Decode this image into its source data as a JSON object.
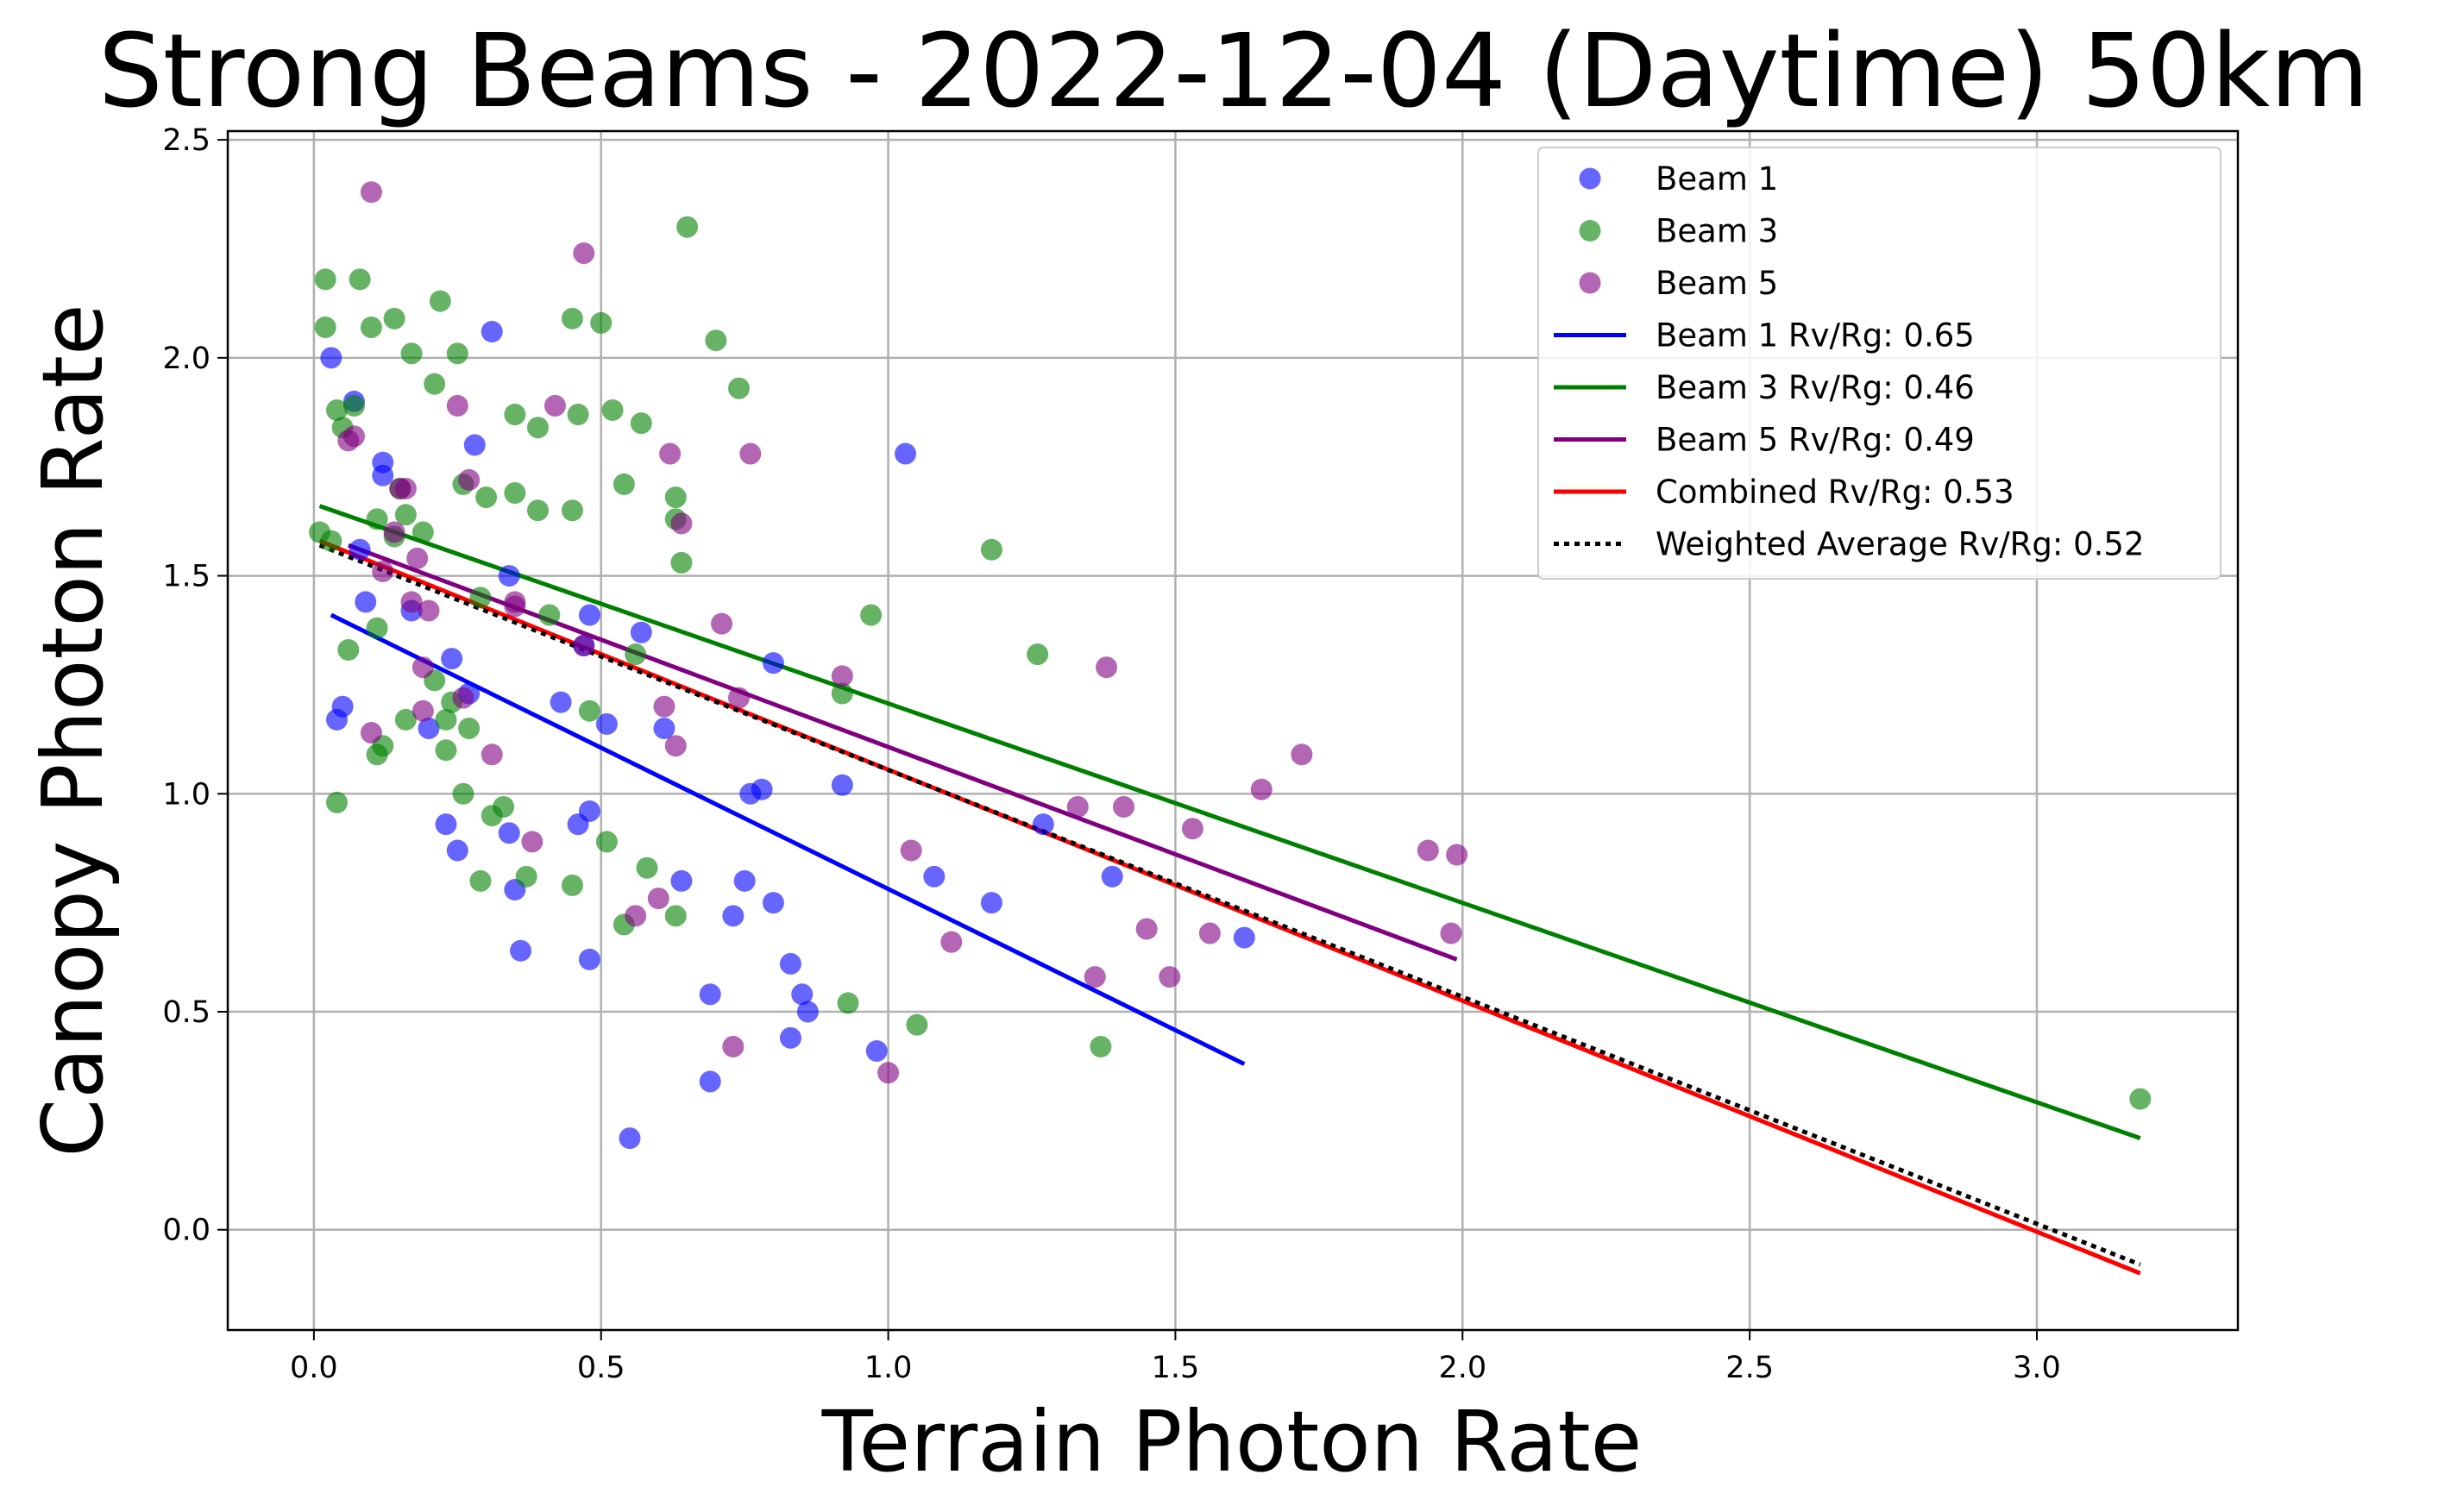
{
  "chart_data": {
    "type": "scatter",
    "title": "Strong Beams - 2022-12-04 (Daytime) 50km",
    "xlabel": "Terrain Photon Rate",
    "ylabel": "Canopy Photon Rate",
    "xlim": [
      -0.15,
      3.35
    ],
    "ylim": [
      -0.23,
      2.52
    ],
    "xticks": [
      0.0,
      0.5,
      1.0,
      1.5,
      2.0,
      2.5,
      3.0
    ],
    "xtick_labels": [
      "0.0",
      "0.5",
      "1.0",
      "1.5",
      "2.0",
      "2.5",
      "3.0"
    ],
    "yticks": [
      0.0,
      0.5,
      1.0,
      1.5,
      2.0,
      2.5
    ],
    "ytick_labels": [
      "0.0",
      "0.5",
      "1.0",
      "1.5",
      "2.0",
      "2.5"
    ],
    "grid": true,
    "legend_position": "top-right",
    "series": [
      {
        "name": "Beam 1",
        "kind": "scatter",
        "color": "#0000ff",
        "points": [
          [
            0.03,
            2.0
          ],
          [
            0.07,
            1.9
          ],
          [
            0.08,
            1.56
          ],
          [
            0.09,
            1.44
          ],
          [
            0.12,
            1.73
          ],
          [
            0.12,
            1.76
          ],
          [
            0.05,
            1.2
          ],
          [
            0.04,
            1.17
          ],
          [
            0.17,
            1.42
          ],
          [
            0.2,
            1.15
          ],
          [
            0.24,
            1.31
          ],
          [
            0.23,
            0.93
          ],
          [
            0.25,
            0.87
          ],
          [
            0.27,
            1.23
          ],
          [
            0.28,
            1.8
          ],
          [
            0.31,
            2.06
          ],
          [
            0.34,
            1.5
          ],
          [
            0.34,
            0.91
          ],
          [
            0.35,
            0.78
          ],
          [
            0.36,
            0.64
          ],
          [
            0.43,
            1.21
          ],
          [
            0.46,
            0.93
          ],
          [
            0.47,
            1.34
          ],
          [
            0.48,
            1.41
          ],
          [
            0.48,
            0.96
          ],
          [
            0.48,
            0.62
          ],
          [
            0.51,
            1.16
          ],
          [
            0.55,
            0.21
          ],
          [
            0.57,
            1.37
          ],
          [
            0.61,
            1.15
          ],
          [
            0.64,
            0.8
          ],
          [
            0.69,
            0.54
          ],
          [
            0.69,
            0.34
          ],
          [
            0.73,
            0.72
          ],
          [
            0.75,
            0.8
          ],
          [
            0.76,
            1.0
          ],
          [
            0.78,
            1.01
          ],
          [
            0.8,
            1.3
          ],
          [
            0.8,
            0.75
          ],
          [
            0.83,
            0.61
          ],
          [
            0.83,
            0.44
          ],
          [
            0.85,
            0.54
          ],
          [
            0.86,
            0.5
          ],
          [
            0.92,
            1.02
          ],
          [
            0.98,
            0.41
          ],
          [
            1.03,
            1.78
          ],
          [
            1.08,
            0.81
          ],
          [
            1.18,
            0.75
          ],
          [
            1.27,
            0.93
          ],
          [
            1.39,
            0.81
          ],
          [
            1.62,
            0.67
          ]
        ]
      },
      {
        "name": "Beam 3",
        "kind": "scatter",
        "color": "#008000",
        "points": [
          [
            0.01,
            1.6
          ],
          [
            0.02,
            2.07
          ],
          [
            0.02,
            2.18
          ],
          [
            0.03,
            1.58
          ],
          [
            0.04,
            0.98
          ],
          [
            0.04,
            1.88
          ],
          [
            0.05,
            1.84
          ],
          [
            0.06,
            1.33
          ],
          [
            0.07,
            1.89
          ],
          [
            0.08,
            2.18
          ],
          [
            0.1,
            2.07
          ],
          [
            0.11,
            1.63
          ],
          [
            0.11,
            1.38
          ],
          [
            0.11,
            1.09
          ],
          [
            0.12,
            1.11
          ],
          [
            0.14,
            2.09
          ],
          [
            0.14,
            1.59
          ],
          [
            0.15,
            1.7
          ],
          [
            0.16,
            1.64
          ],
          [
            0.16,
            1.17
          ],
          [
            0.17,
            2.01
          ],
          [
            0.19,
            1.6
          ],
          [
            0.21,
            1.94
          ],
          [
            0.21,
            1.26
          ],
          [
            0.22,
            2.13
          ],
          [
            0.23,
            1.17
          ],
          [
            0.23,
            1.1
          ],
          [
            0.24,
            1.21
          ],
          [
            0.25,
            2.01
          ],
          [
            0.26,
            1.71
          ],
          [
            0.26,
            1.0
          ],
          [
            0.27,
            1.15
          ],
          [
            0.29,
            1.45
          ],
          [
            0.29,
            0.8
          ],
          [
            0.3,
            1.68
          ],
          [
            0.31,
            0.95
          ],
          [
            0.33,
            0.97
          ],
          [
            0.35,
            1.69
          ],
          [
            0.35,
            1.87
          ],
          [
            0.37,
            0.81
          ],
          [
            0.39,
            1.84
          ],
          [
            0.39,
            1.65
          ],
          [
            0.41,
            1.41
          ],
          [
            0.45,
            2.09
          ],
          [
            0.45,
            1.65
          ],
          [
            0.45,
            0.79
          ],
          [
            0.46,
            1.87
          ],
          [
            0.48,
            1.19
          ],
          [
            0.5,
            2.08
          ],
          [
            0.51,
            0.89
          ],
          [
            0.52,
            1.88
          ],
          [
            0.54,
            1.71
          ],
          [
            0.54,
            0.7
          ],
          [
            0.56,
            1.32
          ],
          [
            0.57,
            1.85
          ],
          [
            0.58,
            0.83
          ],
          [
            0.63,
            1.68
          ],
          [
            0.63,
            1.63
          ],
          [
            0.63,
            0.72
          ],
          [
            0.64,
            1.53
          ],
          [
            0.65,
            2.3
          ],
          [
            0.7,
            2.04
          ],
          [
            0.74,
            1.93
          ],
          [
            0.93,
            0.52
          ],
          [
            0.92,
            1.23
          ],
          [
            0.97,
            1.41
          ],
          [
            1.05,
            0.47
          ],
          [
            1.18,
            1.56
          ],
          [
            1.26,
            1.32
          ],
          [
            1.37,
            0.42
          ],
          [
            3.18,
            0.3
          ]
        ]
      },
      {
        "name": "Beam 5",
        "kind": "scatter",
        "color": "#800080",
        "points": [
          [
            0.06,
            1.81
          ],
          [
            0.07,
            1.82
          ],
          [
            0.1,
            2.38
          ],
          [
            0.1,
            1.14
          ],
          [
            0.12,
            1.51
          ],
          [
            0.14,
            1.6
          ],
          [
            0.15,
            1.7
          ],
          [
            0.16,
            1.7
          ],
          [
            0.17,
            1.44
          ],
          [
            0.18,
            1.54
          ],
          [
            0.19,
            1.29
          ],
          [
            0.19,
            1.19
          ],
          [
            0.2,
            1.42
          ],
          [
            0.25,
            1.89
          ],
          [
            0.26,
            1.22
          ],
          [
            0.27,
            1.72
          ],
          [
            0.31,
            1.09
          ],
          [
            0.35,
            1.44
          ],
          [
            0.35,
            1.43
          ],
          [
            0.38,
            0.89
          ],
          [
            0.42,
            1.89
          ],
          [
            0.47,
            1.34
          ],
          [
            0.47,
            2.24
          ],
          [
            0.56,
            0.72
          ],
          [
            0.6,
            0.76
          ],
          [
            0.61,
            1.2
          ],
          [
            0.62,
            1.78
          ],
          [
            0.63,
            1.11
          ],
          [
            0.64,
            1.62
          ],
          [
            0.71,
            1.39
          ],
          [
            0.74,
            1.22
          ],
          [
            0.73,
            0.42
          ],
          [
            0.76,
            1.78
          ],
          [
            0.92,
            1.27
          ],
          [
            1.0,
            0.36
          ],
          [
            1.04,
            0.87
          ],
          [
            1.11,
            0.66
          ],
          [
            1.33,
            0.97
          ],
          [
            1.36,
            0.58
          ],
          [
            1.38,
            1.29
          ],
          [
            1.41,
            0.97
          ],
          [
            1.45,
            0.69
          ],
          [
            1.49,
            0.58
          ],
          [
            1.53,
            0.92
          ],
          [
            1.56,
            0.68
          ],
          [
            1.65,
            1.01
          ],
          [
            1.72,
            1.09
          ],
          [
            1.94,
            0.87
          ],
          [
            1.99,
            0.86
          ],
          [
            1.98,
            0.68
          ]
        ]
      },
      {
        "name": "Beam 1 Rv/Rg: 0.65",
        "kind": "line",
        "color": "#0000ff",
        "style": "solid",
        "points": [
          [
            0.03,
            1.41
          ],
          [
            1.62,
            0.38
          ]
        ]
      },
      {
        "name": "Beam 3 Rv/Rg: 0.46",
        "kind": "line",
        "color": "#008000",
        "style": "solid",
        "points": [
          [
            0.01,
            1.66
          ],
          [
            3.18,
            0.21
          ]
        ]
      },
      {
        "name": "Beam 5 Rv/Rg: 0.49",
        "kind": "line",
        "color": "#800080",
        "style": "solid",
        "points": [
          [
            0.06,
            1.57
          ],
          [
            1.99,
            0.62
          ]
        ]
      },
      {
        "name": "Combined Rv/Rg: 0.53",
        "kind": "line",
        "color": "#ff0000",
        "style": "solid",
        "points": [
          [
            0.01,
            1.58
          ],
          [
            3.18,
            -0.1
          ]
        ]
      },
      {
        "name": "Weighted Average Rv/Rg: 0.52",
        "kind": "line",
        "color": "#000000",
        "style": "dotted",
        "points": [
          [
            0.01,
            1.57
          ],
          [
            3.18,
            -0.08
          ]
        ]
      }
    ]
  }
}
